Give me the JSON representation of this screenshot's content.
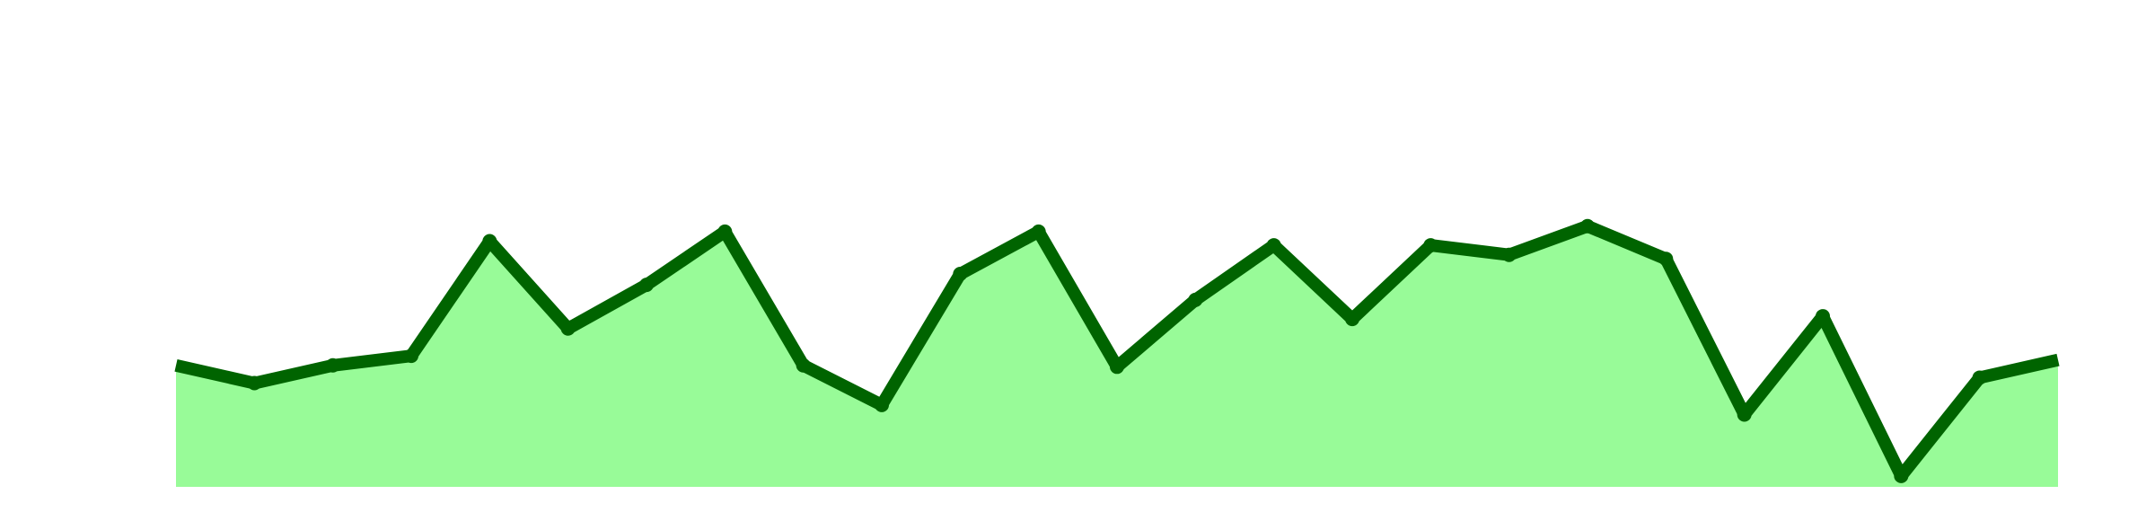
{
  "chart_data": {
    "type": "area",
    "title": "",
    "xlabel": "",
    "ylabel": "",
    "x": [
      0,
      1,
      2,
      3,
      4,
      5,
      6,
      7,
      8,
      9,
      10,
      11,
      12,
      13,
      14,
      15,
      16,
      17,
      18,
      19,
      20,
      21,
      22,
      23,
      24
    ],
    "series": [
      {
        "values": [
          40.5,
          34.0,
          40.5,
          44.0,
          86.0,
          54.0,
          70.0,
          89.5,
          40.5,
          26.0,
          74.0,
          89.5,
          40.0,
          64.5,
          84.5,
          57.5,
          84.5,
          81.0,
          91.5,
          79.5,
          22.5,
          58.5,
          0.0,
          36.0,
          42.5
        ]
      }
    ],
    "ylim": [
      -4,
      125
    ],
    "grid": false,
    "legend": "none",
    "colors": {
      "line": "#006400",
      "fill": "#98fb98"
    }
  }
}
